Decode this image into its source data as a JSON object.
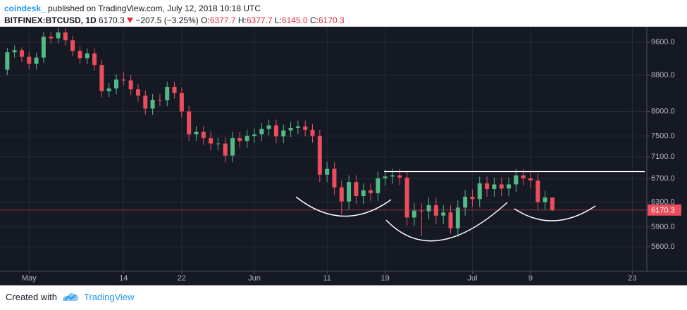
{
  "header": {
    "source": "coindesk_",
    "published": "published on TradingView.com, July 12, 2018 10:18 UTC",
    "symbol": "BITFINEX:BTCUSD, 1D",
    "price": "6170.3",
    "change": "−207.5 (−3.25%)",
    "open_label": "O:",
    "open": "6377.7",
    "high_label": "H:",
    "high": "6377.7",
    "low_label": "L:",
    "low": "6145.0",
    "close_label": "C:",
    "close": "6170.3"
  },
  "footer": {
    "created": "Created with",
    "brand": "TradingView"
  },
  "chart_data": {
    "type": "candlestick",
    "log_scale": true,
    "grid": true,
    "up_color": "#53b987",
    "down_color": "#eb4d5c",
    "last_value": 6170.3,
    "last_color": "#eb4d5c",
    "x": [
      "2018-04-28",
      "2018-04-29",
      "2018-04-30",
      "2018-05-01",
      "2018-05-02",
      "2018-05-03",
      "2018-05-04",
      "2018-05-05",
      "2018-05-06",
      "2018-05-07",
      "2018-05-08",
      "2018-05-09",
      "2018-05-10",
      "2018-05-11",
      "2018-05-12",
      "2018-05-13",
      "2018-05-14",
      "2018-05-15",
      "2018-05-16",
      "2018-05-17",
      "2018-05-18",
      "2018-05-19",
      "2018-05-20",
      "2018-05-21",
      "2018-05-22",
      "2018-05-23",
      "2018-05-24",
      "2018-05-25",
      "2018-05-26",
      "2018-05-27",
      "2018-05-28",
      "2018-05-29",
      "2018-05-30",
      "2018-05-31",
      "2018-06-01",
      "2018-06-02",
      "2018-06-03",
      "2018-06-04",
      "2018-06-05",
      "2018-06-06",
      "2018-06-07",
      "2018-06-08",
      "2018-06-09",
      "2018-06-10",
      "2018-06-11",
      "2018-06-12",
      "2018-06-13",
      "2018-06-14",
      "2018-06-15",
      "2018-06-16",
      "2018-06-17",
      "2018-06-18",
      "2018-06-19",
      "2018-06-20",
      "2018-06-21",
      "2018-06-22",
      "2018-06-23",
      "2018-06-24",
      "2018-06-25",
      "2018-06-26",
      "2018-06-27",
      "2018-06-28",
      "2018-06-29",
      "2018-06-30",
      "2018-07-01",
      "2018-07-02",
      "2018-07-03",
      "2018-07-04",
      "2018-07-05",
      "2018-07-06",
      "2018-07-07",
      "2018-07-08",
      "2018-07-09",
      "2018-07-10",
      "2018-07-11",
      "2018-07-12"
    ],
    "open": [
      8930,
      9350,
      9400,
      9240,
      9070,
      9220,
      9740,
      9700,
      9850,
      9650,
      9380,
      9200,
      9320,
      9040,
      8440,
      8500,
      8700,
      8680,
      8480,
      8340,
      8060,
      8250,
      8240,
      8530,
      8400,
      8000,
      7530,
      7580,
      7460,
      7350,
      7350,
      7120,
      7460,
      7400,
      7500,
      7530,
      7640,
      7710,
      7490,
      7610,
      7660,
      7690,
      7620,
      7500,
      6770,
      6880,
      6550,
      6310,
      6640,
      6400,
      6500,
      6450,
      6710,
      6740,
      6760,
      6720,
      6050,
      6160,
      6150,
      6250,
      6080,
      6130,
      5880,
      6210,
      6390,
      6350,
      6620,
      6520,
      6600,
      6530,
      6600,
      6760,
      6710,
      6670,
      6300,
      6377.7
    ],
    "high": [
      9460,
      9520,
      9470,
      9360,
      9340,
      9860,
      9860,
      9970,
      9960,
      9770,
      9500,
      9440,
      9440,
      9160,
      8620,
      8820,
      8880,
      8800,
      8600,
      8460,
      8370,
      8370,
      8650,
      8650,
      8520,
      8120,
      7700,
      7700,
      7580,
      7470,
      7470,
      7580,
      7580,
      7620,
      7650,
      7760,
      7830,
      7830,
      7730,
      7780,
      7810,
      7810,
      7740,
      7620,
      7000,
      7000,
      6670,
      6760,
      6760,
      6620,
      6620,
      6830,
      6860,
      6880,
      6880,
      6840,
      6280,
      6280,
      6370,
      6370,
      6250,
      6250,
      6330,
      6510,
      6510,
      6740,
      6740,
      6720,
      6720,
      6720,
      6880,
      6880,
      6830,
      6790,
      6490,
      6377.7
    ],
    "low": [
      8800,
      9220,
      9110,
      8940,
      8940,
      9090,
      9570,
      9570,
      9520,
      9250,
      9070,
      9070,
      8910,
      8310,
      8310,
      8370,
      8570,
      8350,
      8210,
      7930,
      7930,
      8110,
      8110,
      8270,
      7870,
      7400,
      7400,
      7330,
      7220,
      7220,
      7000,
      7000,
      7270,
      7270,
      7370,
      7400,
      7510,
      7360,
      7360,
      7480,
      7530,
      7490,
      7370,
      6640,
      6640,
      6420,
      6100,
      6180,
      6270,
      6270,
      6320,
      6320,
      6580,
      6610,
      6590,
      5920,
      5920,
      5760,
      6020,
      5950,
      5950,
      5800,
      5750,
      6080,
      6220,
      6220,
      6390,
      6390,
      6400,
      6400,
      6470,
      6580,
      6540,
      6170,
      6170,
      6145.0
    ],
    "close": [
      9350,
      9400,
      9240,
      9070,
      9220,
      9740,
      9700,
      9850,
      9650,
      9380,
      9200,
      9320,
      9040,
      8440,
      8500,
      8700,
      8680,
      8480,
      8340,
      8060,
      8250,
      8240,
      8530,
      8400,
      8000,
      7530,
      7580,
      7460,
      7350,
      7350,
      7120,
      7460,
      7400,
      7500,
      7530,
      7640,
      7710,
      7490,
      7610,
      7660,
      7690,
      7620,
      7500,
      6770,
      6880,
      6550,
      6310,
      6640,
      6400,
      6500,
      6450,
      6710,
      6740,
      6760,
      6720,
      6050,
      6160,
      6150,
      6250,
      6080,
      6130,
      5880,
      6210,
      6390,
      6350,
      6620,
      6520,
      6600,
      6530,
      6600,
      6760,
      6710,
      6670,
      6300,
      6377.7,
      6170.3
    ],
    "xlim": [
      "2018-04-27",
      "2018-07-25"
    ],
    "xticks": [
      {
        "value": "2018-05-01",
        "label": "May"
      },
      {
        "value": "2018-05-14",
        "label": "14"
      },
      {
        "value": "2018-05-22",
        "label": "22"
      },
      {
        "value": "2018-06-01",
        "label": "Jun"
      },
      {
        "value": "2018-06-11",
        "label": "11"
      },
      {
        "value": "2018-06-19",
        "label": "19"
      },
      {
        "value": "2018-07-01",
        "label": "Jul"
      },
      {
        "value": "2018-07-09",
        "label": "9"
      },
      {
        "value": "2018-07-23",
        "label": "23"
      }
    ],
    "ylim": [
      5250,
      10000
    ],
    "yticks": [
      {
        "value": 5600,
        "label": "5600.0"
      },
      {
        "value": 5900,
        "label": "5900.0"
      },
      {
        "value": 6300,
        "label": "6300.0"
      },
      {
        "value": 6700,
        "label": "6700.0"
      },
      {
        "value": 7100,
        "label": "7100.0"
      },
      {
        "value": 7500,
        "label": "7500.0"
      },
      {
        "value": 8000,
        "label": "8000.0"
      },
      {
        "value": 8800,
        "label": "8800.0"
      },
      {
        "value": 9600,
        "label": "9600.0"
      }
    ]
  }
}
